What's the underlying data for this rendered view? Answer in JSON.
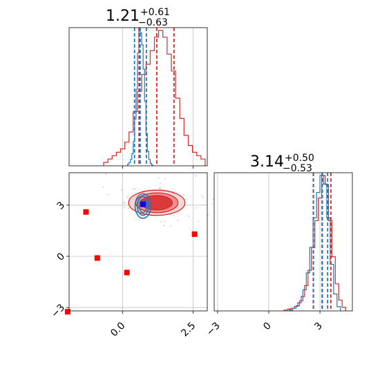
{
  "chart_data": {
    "type": "corner",
    "colors": {
      "primary": "#d62728",
      "secondary": "#1f77b4",
      "truth": "#ff0000",
      "truth_mean": "#0000ff",
      "grid": "#c0c0c0"
    },
    "params": [
      {
        "title_main": "1.21",
        "title_plus": "+0.61",
        "title_minus": "−0.63",
        "range": [
          -1.9,
          3.0
        ],
        "quantiles_primary": [
          0.58,
          1.21,
          1.82
        ],
        "quantiles_secondary": [
          0.42,
          0.62,
          0.84
        ],
        "xticks": [
          0.0,
          2.5
        ],
        "xtick_labels": [
          "0.0",
          "2.5"
        ]
      },
      {
        "title_main": "3.14",
        "title_plus": "+0.50",
        "title_minus": "−0.53",
        "range": [
          -3.2,
          4.9
        ],
        "quantiles_primary": [
          2.61,
          3.14,
          3.64
        ],
        "quantiles_secondary": [
          2.62,
          3.12,
          3.45
        ],
        "yticks": [
          -3,
          0,
          3
        ],
        "ytick_labels": [
          "−3",
          "0",
          "3"
        ],
        "xticks": [
          -3,
          0,
          3
        ],
        "xtick_labels": [
          "−3",
          "0",
          "3"
        ]
      }
    ],
    "hist_primary_p1": {
      "x": [
        -0.6,
        -0.45,
        -0.3,
        -0.15,
        0.0,
        0.15,
        0.3,
        0.45,
        0.6,
        0.75,
        0.9,
        1.05,
        1.2,
        1.35,
        1.5,
        1.65,
        1.8,
        1.95,
        2.1,
        2.25,
        2.4,
        2.55,
        2.7,
        2.85
      ],
      "y": [
        1,
        2,
        3,
        4,
        5,
        7,
        10,
        16,
        22,
        27,
        30,
        34,
        38,
        40,
        38,
        33,
        28,
        20,
        14,
        9,
        6,
        4,
        3,
        2
      ]
    },
    "hist_secondary_p1": {
      "x": [
        0.2,
        0.25,
        0.3,
        0.35,
        0.4,
        0.45,
        0.5,
        0.55,
        0.6,
        0.65,
        0.7,
        0.75,
        0.8,
        0.85,
        0.9,
        0.95,
        1.0,
        1.05
      ],
      "y": [
        2,
        4,
        8,
        15,
        30,
        58,
        95,
        140,
        168,
        165,
        150,
        120,
        80,
        40,
        18,
        8,
        3,
        1
      ]
    },
    "hist_primary_p2": {
      "x": [
        1.0,
        1.2,
        1.4,
        1.6,
        1.8,
        2.0,
        2.2,
        2.4,
        2.6,
        2.8,
        3.0,
        3.2,
        3.4,
        3.6,
        3.8,
        4.0,
        4.2,
        4.4
      ],
      "y": [
        1,
        2,
        3,
        5,
        9,
        16,
        28,
        45,
        70,
        100,
        125,
        150,
        140,
        100,
        60,
        30,
        12,
        4
      ]
    },
    "hist_secondary_p2": {
      "x": [
        1.3,
        1.5,
        1.7,
        1.9,
        2.1,
        2.3,
        2.5,
        2.7,
        2.9,
        3.1,
        3.3,
        3.5,
        3.7,
        3.9,
        4.1
      ],
      "y": [
        1,
        3,
        6,
        12,
        25,
        45,
        75,
        110,
        140,
        160,
        150,
        110,
        55,
        20,
        5
      ]
    },
    "contour_primary_p1p2": {
      "center": [
        1.21,
        3.14
      ],
      "levels": [
        {
          "sx": 0.55,
          "sy": 0.42
        },
        {
          "sx": 0.75,
          "sy": 0.58
        },
        {
          "sx": 1.0,
          "sy": 0.74
        }
      ]
    },
    "contour_secondary_p1p2": {
      "center": [
        0.72,
        2.95
      ],
      "levels": [
        {
          "sx": 0.13,
          "sy": 0.38
        },
        {
          "sx": 0.2,
          "sy": 0.55
        },
        {
          "sx": 0.28,
          "sy": 0.72
        }
      ]
    },
    "truth_markers": [
      {
        "x": -1.3,
        "y": 2.6
      },
      {
        "x": -0.9,
        "y": -0.1
      },
      {
        "x": 0.15,
        "y": -0.95
      },
      {
        "x": 2.55,
        "y": 1.3
      },
      {
        "x": -1.95,
        "y": -3.25
      },
      {
        "x": 0.72,
        "y": 3.05
      }
    ]
  }
}
